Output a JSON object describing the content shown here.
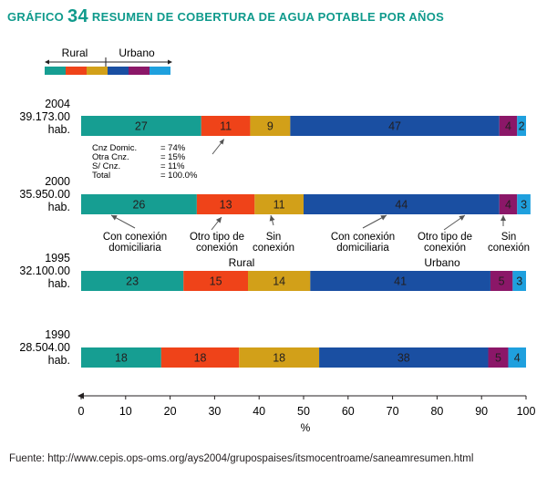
{
  "title": {
    "prefix": "GRÁFICO",
    "number": "34",
    "text": "RESUMEN DE COBERTURA DE AGUA POTABLE POR AÑOS"
  },
  "legend": {
    "rural_label": "Rural",
    "urbano_label": "Urbano"
  },
  "colors": {
    "con_conexion_rural": "#169e92",
    "otro_tipo_rural": "#ef4319",
    "sin_conexion_rural": "#d2a019",
    "con_conexion_urbano": "#1a4fa2",
    "otro_tipo_urbano": "#8b1768",
    "sin_conexion_urbano": "#1fa0de"
  },
  "chart_data": {
    "type": "bar",
    "orientation": "horizontal-stacked",
    "title": "RESUMEN DE COBERTURA DE AGUA POTABLE POR AÑOS",
    "xlabel": "%",
    "xlim": [
      0,
      100
    ],
    "xticks": [
      "0",
      "10",
      "20",
      "30",
      "40",
      "50",
      "60",
      "70",
      "80",
      "90",
      "100"
    ],
    "series": [
      {
        "key": "con_conexion_rural",
        "name": "Con conexión domiciliaria",
        "group": "Rural"
      },
      {
        "key": "otro_tipo_rural",
        "name": "Otro tipo de conexión",
        "group": "Rural"
      },
      {
        "key": "sin_conexion_rural",
        "name": "Sin conexión",
        "group": "Rural"
      },
      {
        "key": "con_conexion_urbano",
        "name": "Con conexión domiciliaria",
        "group": "Urbano"
      },
      {
        "key": "otro_tipo_urbano",
        "name": "Otro tipo de conexión",
        "group": "Urbano"
      },
      {
        "key": "sin_conexion_urbano",
        "name": "Sin conexión",
        "group": "Urbano"
      }
    ],
    "rows": [
      {
        "year": "2004",
        "population": "39.173.00",
        "unit": "hab.",
        "values": [
          27,
          11,
          9,
          47,
          4,
          2
        ],
        "widths": [
          27,
          11,
          9,
          47,
          4,
          2
        ]
      },
      {
        "year": "2000",
        "population": "35.950.00",
        "unit": "hab.",
        "values": [
          26,
          13,
          11,
          44,
          4,
          3
        ],
        "widths": [
          26,
          13,
          11,
          44,
          4,
          3
        ]
      },
      {
        "year": "1995",
        "population": "32.100.00",
        "unit": "hab.",
        "values": [
          23,
          15,
          14,
          41,
          5,
          3
        ],
        "widths": [
          23,
          14.5,
          14,
          40.5,
          5,
          3
        ]
      },
      {
        "year": "1990",
        "population": "28.504.00",
        "unit": "hab.",
        "values": [
          18,
          18,
          18,
          38,
          5,
          4
        ],
        "widths": [
          18,
          17.5,
          18,
          38,
          4.5,
          4
        ]
      }
    ],
    "annotation_box": [
      {
        "label": "Cnz Domic.",
        "value": "= 74%"
      },
      {
        "label": "Otra Cnz.",
        "value": "= 15%"
      },
      {
        "label": "S/ Cnz.",
        "value": "= 11%"
      },
      {
        "label": "Total",
        "value": "= 100.0%"
      }
    ],
    "category_labels": [
      {
        "lines": [
          "Con conexión",
          "domiciliaria"
        ]
      },
      {
        "lines": [
          "Otro tipo de",
          "conexión"
        ]
      },
      {
        "lines": [
          "Sin",
          "conexión"
        ]
      },
      {
        "lines": [
          "Con conexión",
          "domiciliaria"
        ]
      },
      {
        "lines": [
          "Otro tipo de",
          "conexión"
        ]
      },
      {
        "lines": [
          "Sin",
          "conexión"
        ]
      }
    ],
    "group_labels": [
      "Rural",
      "Urbano"
    ]
  },
  "source": "Fuente: http://www.cepis.ops-oms.org/ays2004/grupospaises/itsmocentroame/saneamresumen.html"
}
